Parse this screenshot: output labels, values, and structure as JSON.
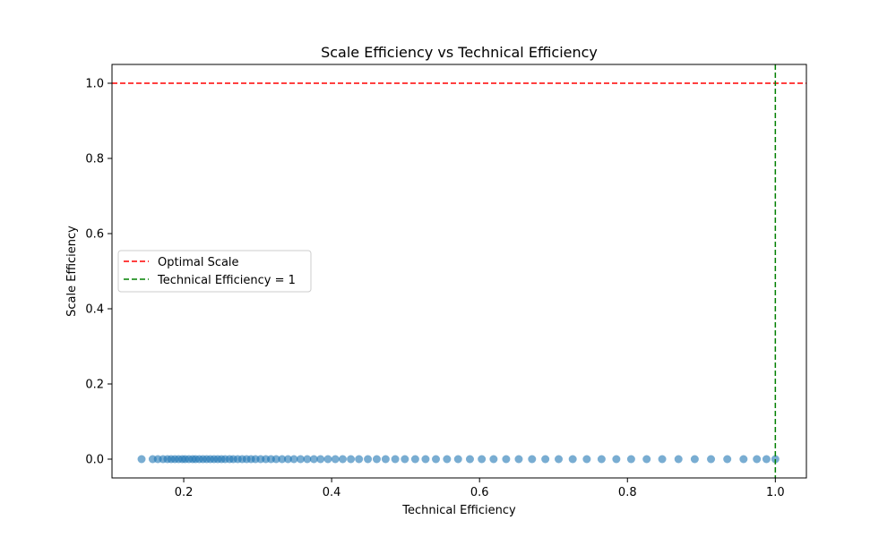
{
  "chart_data": {
    "type": "scatter",
    "title": "Scale Efficiency vs Technical Efficiency",
    "xlabel": "Technical Efficiency",
    "ylabel": "Scale Efficiency",
    "xlim": [
      0.103,
      1.042
    ],
    "ylim": [
      -0.05,
      1.05
    ],
    "xticks": [
      0.2,
      0.4,
      0.6,
      0.8,
      1.0
    ],
    "xtick_labels": [
      "0.2",
      "0.4",
      "0.6",
      "0.8",
      "1.0"
    ],
    "yticks": [
      0.0,
      0.2,
      0.4,
      0.6,
      0.8,
      1.0
    ],
    "ytick_labels": [
      "0.0",
      "0.2",
      "0.4",
      "0.6",
      "0.8",
      "1.0"
    ],
    "grid": false,
    "legend_position": "center-left",
    "point_color": "#1f77b4",
    "point_alpha": 0.6,
    "points": {
      "y": 0.0,
      "x": [
        0.143,
        0.158,
        0.165,
        0.172,
        0.178,
        0.183,
        0.188,
        0.193,
        0.198,
        0.202,
        0.207,
        0.212,
        0.216,
        0.221,
        0.226,
        0.231,
        0.236,
        0.241,
        0.246,
        0.251,
        0.256,
        0.262,
        0.267,
        0.273,
        0.279,
        0.285,
        0.291,
        0.297,
        0.304,
        0.311,
        0.318,
        0.325,
        0.333,
        0.341,
        0.349,
        0.358,
        0.367,
        0.376,
        0.385,
        0.395,
        0.405,
        0.415,
        0.426,
        0.437,
        0.449,
        0.461,
        0.473,
        0.486,
        0.499,
        0.513,
        0.527,
        0.541,
        0.556,
        0.571,
        0.587,
        0.603,
        0.619,
        0.636,
        0.653,
        0.671,
        0.689,
        0.707,
        0.726,
        0.745,
        0.765,
        0.785,
        0.805,
        0.826,
        0.847,
        0.869,
        0.891,
        0.913,
        0.935,
        0.957,
        0.975,
        0.988,
        1.0
      ]
    },
    "reference_lines": [
      {
        "name": "Optimal Scale",
        "orientation": "horizontal",
        "value": 1.0,
        "color": "#ff0000",
        "style": "dashed"
      },
      {
        "name": "Technical Efficiency = 1",
        "orientation": "vertical",
        "value": 1.0,
        "color": "#008000",
        "style": "dashed"
      }
    ]
  }
}
